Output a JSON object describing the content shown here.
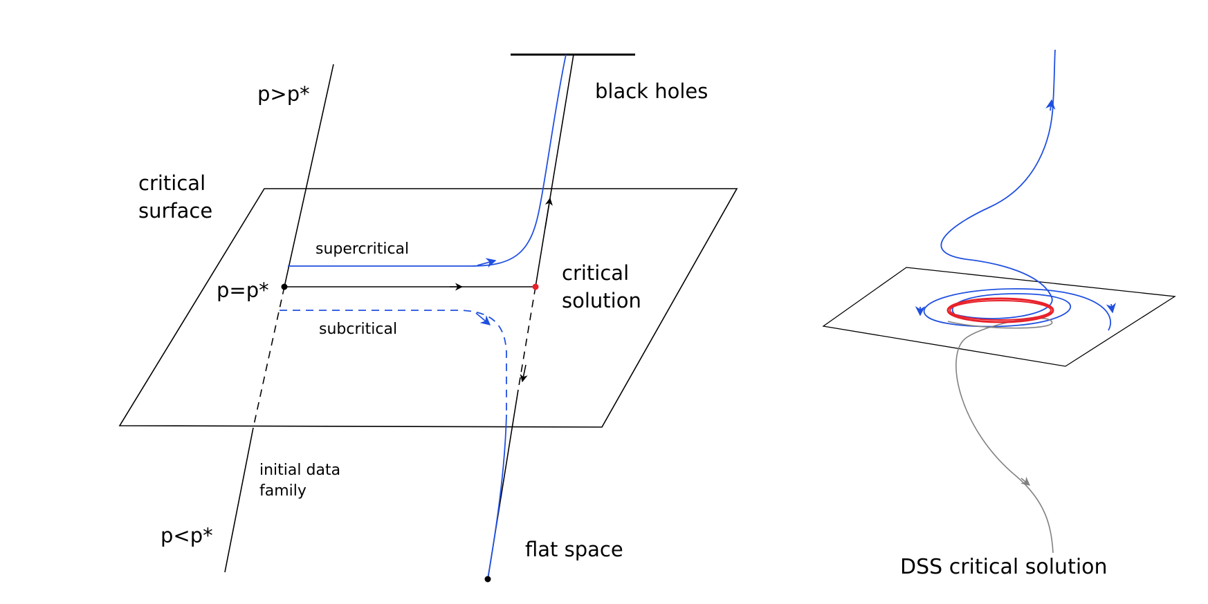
{
  "labels": {
    "p_greater": "p>p*",
    "p_equal": "p=p*",
    "p_less": "p<p*",
    "critical_surface_line1": "critical",
    "critical_surface_line2": "surface",
    "black_holes": "black holes",
    "critical_solution_line1": "critical",
    "critical_solution_line2": "solution",
    "supercritical": "supercritical",
    "subcritical": "subcritical",
    "initial_data_line1": "initial data",
    "initial_data_line2": "family",
    "flat_space": "flat space",
    "dss_critical_solution": "DSS critical solution"
  },
  "colors": {
    "ink": "#000000",
    "trajectory": "#1f4fe0",
    "critical_point": "#e8202a",
    "dss_cycle": "#e8202a",
    "dss_unstable": "#808080"
  }
}
